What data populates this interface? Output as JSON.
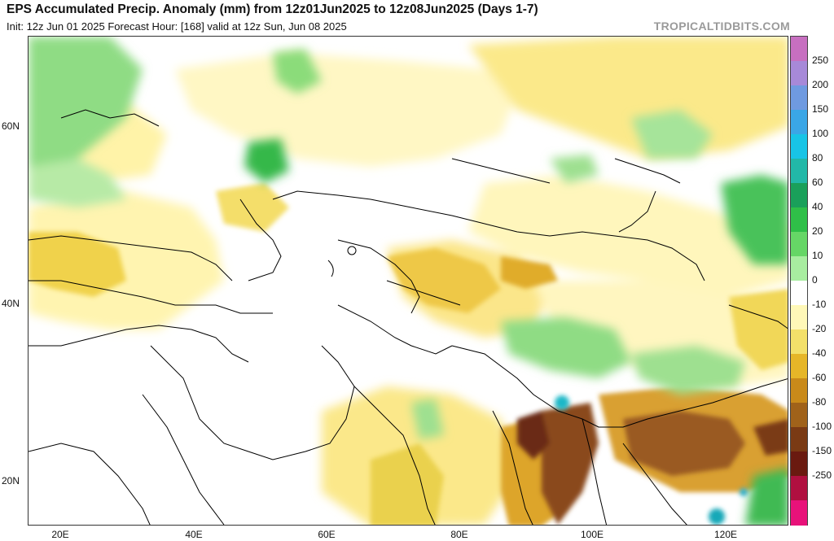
{
  "header": {
    "title": "EPS Accumulated Precip. Anomaly (mm) from 12z01Jun2025 to 12z08Jun2025 (Days 1-7)",
    "subtitle": "Init: 12z Jun 01 2025   Forecast Hour: [168]   valid at 12z Sun, Jun 08 2025",
    "brand": "TROPICALTIDBITS.COM"
  },
  "axes": {
    "latitudes": [
      "60N",
      "40N",
      "20N"
    ],
    "longitudes": [
      "20E",
      "40E",
      "60E",
      "80E",
      "100E",
      "120E"
    ]
  },
  "colorbar": {
    "labels": [
      "250",
      "200",
      "150",
      "100",
      "80",
      "60",
      "40",
      "20",
      "10",
      "0",
      "-10",
      "-20",
      "-40",
      "-60",
      "-80",
      "-100",
      "-150",
      "-250"
    ],
    "colors": [
      "#c76fc0",
      "#a789d8",
      "#6f9ae0",
      "#3aa6e6",
      "#18c4e6",
      "#22b8a8",
      "#1aa05a",
      "#2fbf48",
      "#66d666",
      "#a8eda0",
      "#ffffff",
      "#fff8b8",
      "#f3e06a",
      "#e6b628",
      "#c98a1a",
      "#a0621a",
      "#7a3a14",
      "#6a1a10",
      "#b01040",
      "#e8127a"
    ]
  }
}
